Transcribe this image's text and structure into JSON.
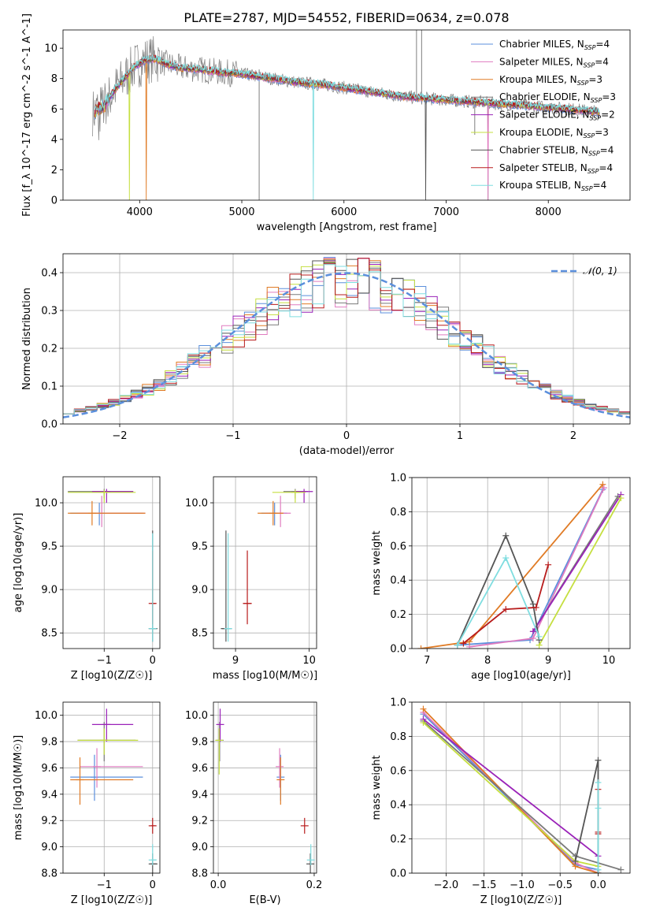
{
  "title": "PLATE=2787, MJD=54552, FIBERID=0634, z=0.078",
  "colors": {
    "Chabrier MILES": "#5b8fdc",
    "Salpeter MILES": "#e07cc0",
    "Kroupa MILES": "#e07b25",
    "Chabrier ELODIE": "#7a7a7a",
    "Salpeter ELODIE": "#9a22b8",
    "Kroupa ELODIE": "#c5df40",
    "Chabrier STELIB": "#555555",
    "Salpeter STELIB": "#b81c1c",
    "Kroupa STELIB": "#7fdde0",
    "data": "#7f7f7f",
    "gaussian": "#5b8fdc"
  },
  "chart_data": [
    {
      "name": "spectrum",
      "type": "line",
      "xlabel": "wavelength [Angstrom, rest frame]",
      "ylabel": "Flux [f_λ 10^-17 erg cm^-2 s^-1 A^-1]",
      "xlim": [
        3250,
        8800
      ],
      "ylim": [
        0,
        11.2
      ],
      "xticks": [
        "4000",
        "5000",
        "6000",
        "7000",
        "8000"
      ],
      "yticks": [
        "0",
        "2",
        "4",
        "6",
        "8",
        "10"
      ],
      "legend": [
        "Chabrier MILES, N_SSP=4",
        "Salpeter MILES, N_SSP=4",
        "Kroupa MILES, N_SSP=3",
        "Chabrier ELODIE, N_SSP=3",
        "Salpeter ELODIE, N_SSP=2",
        "Kroupa ELODIE, N_SSP=3",
        "Chabrier STELIB, N_SSP=4",
        "Salpeter STELIB, N_SSP=4",
        "Kroupa STELIB, N_SSP=4"
      ],
      "legend_loc": "upper right",
      "model_continuum": {
        "x": [
          3550,
          3650,
          3750,
          3850,
          3950,
          4050,
          4150,
          4250,
          4400,
          4600,
          4800,
          5000,
          5200,
          5400,
          5600,
          5800,
          6000,
          6200,
          6400,
          6600,
          6800,
          7000,
          7200,
          7400,
          7600,
          7800,
          8000,
          8200,
          8500
        ],
        "y": [
          5.8,
          6.2,
          7.2,
          8.0,
          8.8,
          9.2,
          9.3,
          9.0,
          8.7,
          8.6,
          8.4,
          8.3,
          8.1,
          7.9,
          7.7,
          7.6,
          7.4,
          7.2,
          7.0,
          6.8,
          6.7,
          6.6,
          6.5,
          6.4,
          6.3,
          6.2,
          6.1,
          6.0,
          5.8
        ]
      },
      "grid": false
    },
    {
      "name": "residual_distribution",
      "type": "step",
      "xlabel": "(data-model)/error",
      "ylabel": "Normed distribution",
      "xlim": [
        -2.5,
        2.5
      ],
      "ylim": [
        0,
        0.45
      ],
      "xticks": [
        "−2",
        "−1",
        "0",
        "1",
        "2"
      ],
      "yticks": [
        "0.0",
        "0.1",
        "0.2",
        "0.3",
        "0.4"
      ],
      "legend": [
        "𝒩(0, 1)"
      ],
      "legend_loc": "upper right",
      "gaussian": {
        "mean": 0,
        "sigma": 1
      },
      "bins": {
        "start": -2.5,
        "width": 0.1,
        "count": 50
      },
      "grid": true
    },
    {
      "name": "age_vs_Z",
      "type": "errorbar",
      "xlabel": "Z [log10(Z/Z☉)]",
      "ylabel": "age [log10(age/yr)]",
      "xlim": [
        -1.85,
        0.15
      ],
      "ylim": [
        8.32,
        10.3
      ],
      "xticks": [
        "−1",
        "0"
      ],
      "yticks": [
        "8.5",
        "9.0",
        "9.5",
        "10.0"
      ],
      "points": [
        {
          "s": "Chabrier MILES",
          "x": -1.1,
          "y": 9.88,
          "xl": -1.7,
          "xh": -0.2,
          "yl": 9.74,
          "yh": 10.0
        },
        {
          "s": "Salpeter MILES",
          "x": -1.05,
          "y": 9.88,
          "xl": -1.55,
          "xh": -0.15,
          "yl": 9.72,
          "yh": 10.08
        },
        {
          "s": "Kroupa MILES",
          "x": -1.25,
          "y": 9.88,
          "xl": -1.75,
          "xh": -0.15,
          "yl": 9.74,
          "yh": 10.02
        },
        {
          "s": "Chabrier ELODIE",
          "x": -1.0,
          "y": 10.13,
          "xl": -1.75,
          "xh": -0.4,
          "yl": 10.05,
          "yh": 10.16
        },
        {
          "s": "Salpeter ELODIE",
          "x": -0.95,
          "y": 10.13,
          "xl": -1.25,
          "xh": -0.4,
          "yl": 10.0,
          "yh": 10.16
        },
        {
          "s": "Kroupa ELODIE",
          "x": -1.0,
          "y": 10.12,
          "xl": -1.75,
          "xh": -0.35,
          "yl": 10.0,
          "yh": 10.15
        },
        {
          "s": "Chabrier STELIB",
          "x": 0.0,
          "y": 8.55,
          "xl": -0.02,
          "xh": 0.1,
          "yl": 8.4,
          "yh": 9.68
        },
        {
          "s": "Salpeter STELIB",
          "x": 0.0,
          "y": 8.84,
          "xl": -0.02,
          "xh": 0.06,
          "yl": 8.6,
          "yh": 9.45
        },
        {
          "s": "Kroupa STELIB",
          "x": 0.0,
          "y": 8.55,
          "xl": -0.02,
          "xh": 0.02,
          "yl": 8.4,
          "yh": 9.65
        }
      ],
      "grid": true
    },
    {
      "name": "age_vs_mass",
      "type": "errorbar",
      "xlabel": "mass [log10(M/M☉)]",
      "ylabel": "",
      "xlim": [
        8.7,
        10.1
      ],
      "ylim": [
        8.32,
        10.3
      ],
      "xticks": [
        "9",
        "10"
      ],
      "yticks": [
        "8.5",
        "9.0",
        "9.5",
        "10.0"
      ],
      "points": [
        {
          "s": "Chabrier MILES",
          "x": 9.53,
          "y": 9.88,
          "xl": 9.35,
          "xh": 9.7,
          "yl": 9.74,
          "yh": 10.0
        },
        {
          "s": "Salpeter MILES",
          "x": 9.61,
          "y": 9.88,
          "xl": 9.4,
          "xh": 9.75,
          "yl": 9.72,
          "yh": 10.08
        },
        {
          "s": "Kroupa MILES",
          "x": 9.51,
          "y": 9.88,
          "xl": 9.3,
          "xh": 9.65,
          "yl": 9.74,
          "yh": 10.02
        },
        {
          "s": "Chabrier ELODIE",
          "x": 9.81,
          "y": 10.13,
          "xl": 9.65,
          "xh": 9.95,
          "yl": 10.05,
          "yh": 10.16
        },
        {
          "s": "Salpeter ELODIE",
          "x": 9.93,
          "y": 10.13,
          "xl": 9.8,
          "xh": 10.05,
          "yl": 10.0,
          "yh": 10.16
        },
        {
          "s": "Kroupa ELODIE",
          "x": 9.81,
          "y": 10.12,
          "xl": 9.5,
          "xh": 9.95,
          "yl": 10.0,
          "yh": 10.15
        },
        {
          "s": "Chabrier STELIB",
          "x": 8.87,
          "y": 8.55,
          "xl": 8.8,
          "xh": 8.95,
          "yl": 8.4,
          "yh": 9.68
        },
        {
          "s": "Salpeter STELIB",
          "x": 9.16,
          "y": 8.84,
          "xl": 9.1,
          "xh": 9.22,
          "yl": 8.6,
          "yh": 9.45
        },
        {
          "s": "Kroupa STELIB",
          "x": 8.9,
          "y": 8.55,
          "xl": 8.86,
          "xh": 8.94,
          "yl": 8.4,
          "yh": 9.65
        }
      ],
      "grid": true
    },
    {
      "name": "weight_vs_age",
      "type": "line",
      "xlabel": "age [log10(age/yr)]",
      "ylabel": "mass weight",
      "xlim": [
        6.75,
        10.35
      ],
      "ylim": [
        0,
        1.0
      ],
      "xticks": [
        "7",
        "8",
        "9",
        "10"
      ],
      "yticks": [
        "0.0",
        "0.2",
        "0.4",
        "0.6",
        "0.8",
        "1.0"
      ],
      "series": [
        {
          "s": "Chabrier MILES",
          "x": [
            7.5,
            8.7,
            9.9
          ],
          "y": [
            0.02,
            0.05,
            0.93
          ]
        },
        {
          "s": "Salpeter MILES",
          "x": [
            7.7,
            8.75,
            9.92
          ],
          "y": [
            0.01,
            0.06,
            0.94
          ]
        },
        {
          "s": "Kroupa MILES",
          "x": [
            6.9,
            7.7,
            9.9
          ],
          "y": [
            0.0,
            0.04,
            0.96
          ]
        },
        {
          "s": "Chabrier ELODIE",
          "x": [
            8.75,
            10.15
          ],
          "y": [
            0.1,
            0.89
          ]
        },
        {
          "s": "Salpeter ELODIE",
          "x": [
            8.75,
            10.2
          ],
          "y": [
            0.1,
            0.9
          ]
        },
        {
          "s": "Kroupa ELODIE",
          "x": [
            8.85,
            10.2
          ],
          "y": [
            0.02,
            0.88
          ]
        },
        {
          "s": "Chabrier STELIB",
          "x": [
            7.5,
            8.3,
            8.75,
            8.85
          ],
          "y": [
            0.02,
            0.66,
            0.26,
            0.05
          ]
        },
        {
          "s": "Salpeter STELIB",
          "x": [
            7.6,
            8.3,
            8.8,
            9.0
          ],
          "y": [
            0.03,
            0.23,
            0.24,
            0.49
          ]
        },
        {
          "s": "Kroupa STELIB",
          "x": [
            7.5,
            8.3,
            8.85
          ],
          "y": [
            0.02,
            0.53,
            0.07
          ]
        }
      ],
      "grid": true
    },
    {
      "name": "mass_vs_Z",
      "type": "errorbar",
      "xlabel": "Z [log10(Z/Z☉)]",
      "ylabel": "mass [log10(M/M☉)]",
      "xlim": [
        -1.85,
        0.15
      ],
      "ylim": [
        8.8,
        10.1
      ],
      "xticks": [
        "−1",
        "0"
      ],
      "yticks": [
        "8.8",
        "9.0",
        "9.2",
        "9.4",
        "9.6",
        "9.8",
        "10.0"
      ],
      "points": [
        {
          "s": "Chabrier MILES",
          "x": -1.2,
          "y": 9.53,
          "xl": -1.7,
          "xh": -0.2,
          "yl": 9.35,
          "yh": 9.7
        },
        {
          "s": "Salpeter MILES",
          "x": -1.15,
          "y": 9.61,
          "xl": -1.5,
          "xh": -0.2,
          "yl": 9.45,
          "yh": 9.75
        },
        {
          "s": "Kroupa MILES",
          "x": -1.5,
          "y": 9.51,
          "xl": -1.7,
          "xh": -0.4,
          "yl": 9.32,
          "yh": 9.68
        },
        {
          "s": "Chabrier ELODIE",
          "x": -1.0,
          "y": 9.81,
          "xl": -1.55,
          "xh": -0.35,
          "yl": 9.65,
          "yh": 9.95
        },
        {
          "s": "Salpeter ELODIE",
          "x": -0.95,
          "y": 9.93,
          "xl": -1.25,
          "xh": -0.4,
          "yl": 9.8,
          "yh": 10.05
        },
        {
          "s": "Kroupa ELODIE",
          "x": -1.0,
          "y": 9.81,
          "xl": -1.55,
          "xh": -0.3,
          "yl": 9.7,
          "yh": 9.9
        },
        {
          "s": "Chabrier STELIB",
          "x": 0.0,
          "y": 8.87,
          "xl": -0.05,
          "xh": 0.1,
          "yl": 8.8,
          "yh": 8.95
        },
        {
          "s": "Salpeter STELIB",
          "x": 0.0,
          "y": 9.16,
          "xl": -0.04,
          "xh": 0.06,
          "yl": 9.1,
          "yh": 9.22
        },
        {
          "s": "Kroupa STELIB",
          "x": 0.0,
          "y": 8.9,
          "xl": -0.03,
          "xh": 0.08,
          "yl": 8.86,
          "yh": 9.02
        }
      ],
      "grid": true
    },
    {
      "name": "mass_vs_EBV",
      "type": "errorbar",
      "xlabel": "E(B-V)",
      "ylabel": "",
      "xlim": [
        -0.01,
        0.205
      ],
      "ylim": [
        8.8,
        10.1
      ],
      "xticks": [
        "0.0",
        "0.2"
      ],
      "yticks": [
        "8.8",
        "9.0",
        "9.2",
        "9.4",
        "9.6",
        "9.8",
        "10.0"
      ],
      "points": [
        {
          "s": "Chabrier MILES",
          "x": 0.13,
          "y": 9.53,
          "yl": 9.35,
          "yh": 9.7
        },
        {
          "s": "Salpeter MILES",
          "x": 0.128,
          "y": 9.61,
          "yl": 9.45,
          "yh": 9.75
        },
        {
          "s": "Kroupa MILES",
          "x": 0.13,
          "y": 9.51,
          "yl": 9.32,
          "yh": 9.68
        },
        {
          "s": "Chabrier ELODIE",
          "x": 0.003,
          "y": 9.81,
          "yl": 9.65,
          "yh": 9.95
        },
        {
          "s": "Salpeter ELODIE",
          "x": 0.004,
          "y": 9.93,
          "yl": 9.8,
          "yh": 10.05
        },
        {
          "s": "Kroupa ELODIE",
          "x": 0.002,
          "y": 9.81,
          "yl": 9.55,
          "yh": 9.9
        },
        {
          "s": "Chabrier STELIB",
          "x": 0.192,
          "y": 8.87,
          "yl": 8.8,
          "yh": 8.95
        },
        {
          "s": "Salpeter STELIB",
          "x": 0.18,
          "y": 9.16,
          "yl": 9.1,
          "yh": 9.22
        },
        {
          "s": "Kroupa STELIB",
          "x": 0.193,
          "y": 8.9,
          "yl": 8.86,
          "yh": 9.02
        }
      ],
      "grid": true
    },
    {
      "name": "weight_vs_Z",
      "type": "line",
      "xlabel": "Z [log10(Z/Z☉)]",
      "ylabel": "mass weight",
      "xlim": [
        -2.45,
        0.42
      ],
      "ylim": [
        0,
        1.0
      ],
      "xticks": [
        "−2.0",
        "−1.5",
        "−1.0",
        "−0.5",
        "0.0"
      ],
      "yticks": [
        "0.0",
        "0.2",
        "0.4",
        "0.6",
        "0.8",
        "1.0"
      ],
      "series": [
        {
          "s": "Chabrier MILES",
          "x": [
            -2.3,
            -0.3,
            0.0
          ],
          "y": [
            0.93,
            0.05,
            0.02
          ]
        },
        {
          "s": "Salpeter MILES",
          "x": [
            -2.3,
            -0.3,
            0.0
          ],
          "y": [
            0.94,
            0.06,
            0.0
          ]
        },
        {
          "s": "Kroupa MILES",
          "x": [
            -2.3,
            -0.3,
            0.0
          ],
          "y": [
            0.96,
            0.04,
            0.0
          ]
        },
        {
          "s": "Chabrier ELODIE",
          "x": [
            -2.3,
            -0.3,
            0.3
          ],
          "y": [
            0.89,
            0.1,
            0.02
          ]
        },
        {
          "s": "Salpeter ELODIE",
          "x": [
            -2.3,
            0.0
          ],
          "y": [
            0.9,
            0.1
          ]
        },
        {
          "s": "Kroupa ELODIE",
          "x": [
            -2.3,
            -0.3,
            0.0
          ],
          "y": [
            0.88,
            0.07,
            0.04
          ]
        },
        {
          "s": "Chabrier STELIB",
          "x": [
            -0.3,
            0.0,
            0.0
          ],
          "y": [
            0.07,
            0.66,
            0.0
          ]
        },
        {
          "s": "Salpeter STELIB",
          "x": [
            0.0,
            0.0,
            0.0
          ],
          "y": [
            0.49,
            0.24,
            0.23
          ]
        },
        {
          "s": "Kroupa STELIB",
          "x": [
            0.0,
            0.0,
            0.0
          ],
          "y": [
            0.53,
            0.38,
            0.02
          ]
        }
      ],
      "grid": true
    }
  ]
}
